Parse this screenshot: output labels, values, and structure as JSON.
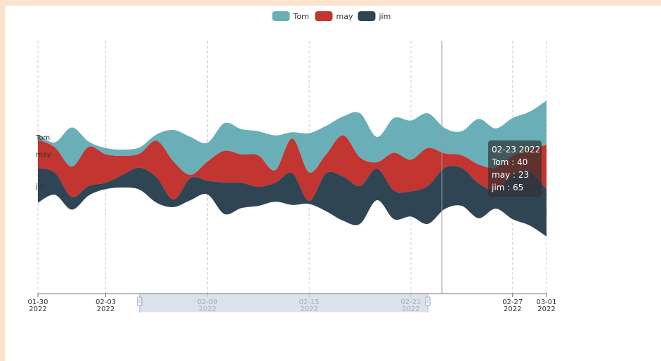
{
  "colors": {
    "Tom": "#6aafb8",
    "may": "#c23531",
    "jim": "#2f4554"
  },
  "tooltip": {
    "date": "02-23 2022",
    "lines": [
      "Tom : 40",
      "may : 23",
      "jim : 65"
    ]
  },
  "chart_data": {
    "type": "area",
    "subtype": "themeRiver",
    "legend": [
      "Tom",
      "may",
      "jim"
    ],
    "legend_position": "top-center",
    "x_axis_type": "time",
    "x_range": [
      "2022-01-30",
      "2022-03-01"
    ],
    "x_ticks": [
      {
        "date": "2022-01-30",
        "label": "01-30",
        "year": "2022"
      },
      {
        "date": "2022-02-03",
        "label": "02-03",
        "year": "2022"
      },
      {
        "date": "2022-02-09",
        "label": "02-09",
        "year": "2022"
      },
      {
        "date": "2022-02-15",
        "label": "02-15",
        "year": "2022"
      },
      {
        "date": "2022-02-21",
        "label": "02-21",
        "year": "2022"
      },
      {
        "date": "2022-02-27",
        "label": "02-27",
        "year": "2022"
      },
      {
        "date": "2022-03-01",
        "label": "03-01",
        "year": "2022"
      }
    ],
    "dates": [
      "01-30",
      "01-31",
      "02-01",
      "02-02",
      "02-03",
      "02-04",
      "02-05",
      "02-06",
      "02-07",
      "02-08",
      "02-09",
      "02-10",
      "02-11",
      "02-12",
      "02-13",
      "02-14",
      "02-15",
      "02-16",
      "02-17",
      "02-18",
      "02-19",
      "02-20",
      "02-21",
      "02-22",
      "02-23",
      "02-24",
      "02-25",
      "02-26",
      "02-27",
      "02-28",
      "03-01"
    ],
    "series": [
      {
        "name": "Tom",
        "values": [
          8,
          8,
          62,
          8,
          10,
          10,
          10,
          10,
          50,
          60,
          30,
          44,
          40,
          38,
          55,
          10,
          62,
          45,
          30,
          70,
          40,
          55,
          62,
          55,
          40,
          38,
          72,
          62,
          60,
          60,
          70
        ]
      },
      {
        "name": "may",
        "values": [
          45,
          40,
          48,
          62,
          45,
          30,
          22,
          58,
          60,
          5,
          30,
          50,
          45,
          50,
          20,
          55,
          45,
          30,
          65,
          45,
          10,
          60,
          50,
          60,
          23,
          20,
          30,
          35,
          30,
          35,
          70
        ]
      },
      {
        "name": "jim",
        "values": [
          55,
          35,
          20,
          15,
          10,
          20,
          35,
          40,
          12,
          35,
          22,
          50,
          40,
          30,
          30,
          50,
          5,
          60,
          70,
          60,
          50,
          45,
          40,
          60,
          65,
          60,
          55,
          30,
          70,
          85,
          75
        ]
      }
    ],
    "hover_date": "02-23 2022",
    "datazoom_window": [
      "2022-02-05",
      "2022-02-22"
    ]
  }
}
